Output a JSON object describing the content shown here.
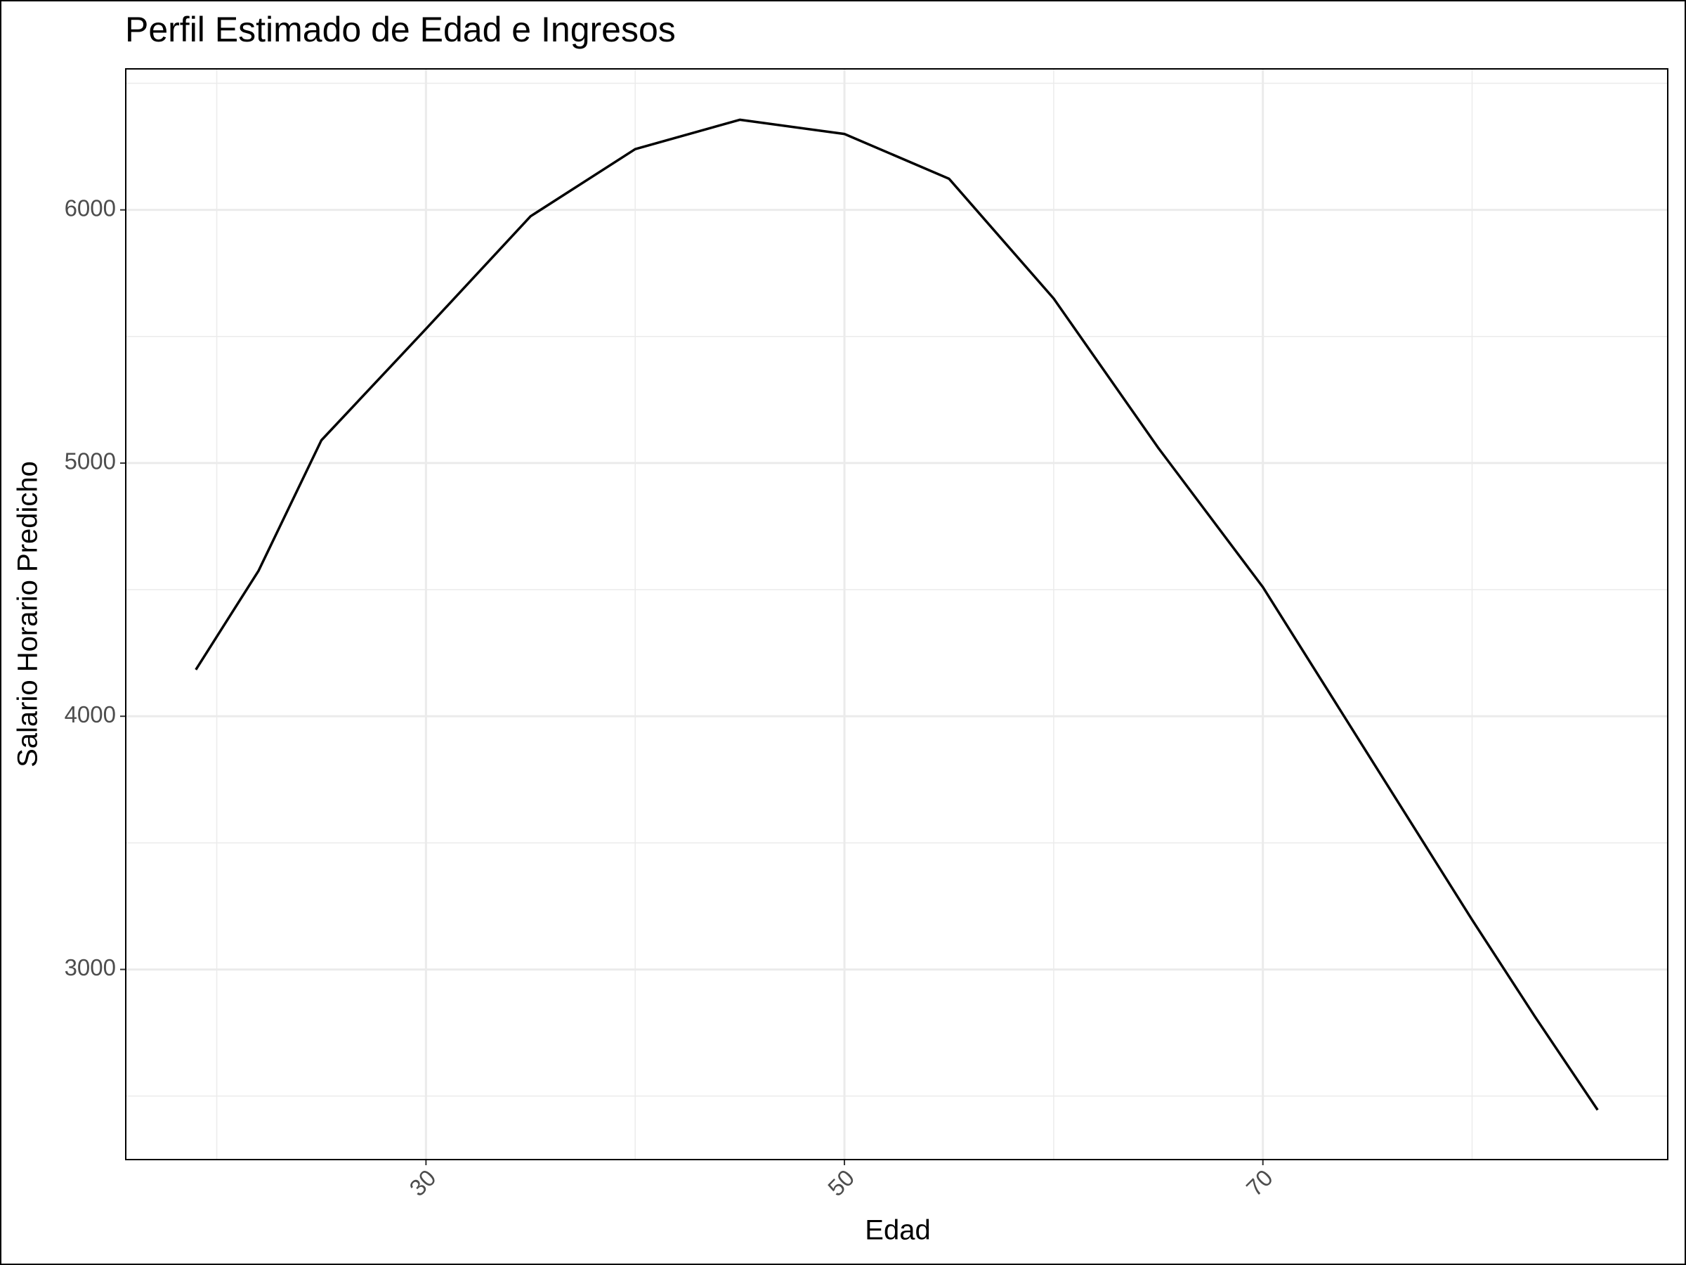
{
  "chart_data": {
    "type": "line",
    "title": "Perfil Estimado de Edad e Ingresos",
    "x_label": "Edad",
    "y_label": "Salario Horario Predicho",
    "x": [
      19,
      22,
      25,
      30,
      35,
      40,
      45,
      50,
      55,
      60,
      65,
      70,
      75,
      80,
      83,
      86
    ],
    "series": [
      {
        "name": "Salario",
        "color": "#000000",
        "values": [
          4184,
          4575,
          5090,
          5530,
          5975,
          6240,
          6356,
          6300,
          6123,
          5650,
          5060,
          4510,
          3853,
          3196,
          2814,
          2445
        ]
      }
    ],
    "xlim": [
      15.65,
      89.35
    ],
    "xticks": [
      30,
      50,
      70
    ],
    "x_minor_grid": [
      20,
      40,
      60,
      80
    ],
    "ylim": [
      2249,
      6557
    ],
    "yticks": [
      3000,
      4000,
      5000,
      6000
    ],
    "y_minor_grid": [
      2500,
      3500,
      4500,
      5500,
      6500
    ],
    "grid": true
  }
}
